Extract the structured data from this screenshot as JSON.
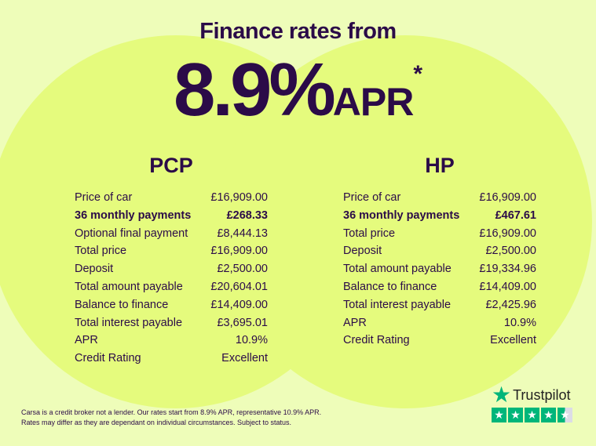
{
  "header": {
    "title": "Finance rates from",
    "rate": "8.9%",
    "rate_unit": "APR",
    "asterisk": "*"
  },
  "plans": [
    {
      "name": "PCP",
      "rows": [
        {
          "label": "Price of car",
          "value": "£16,909.00",
          "bold": false
        },
        {
          "label": "36 monthly payments",
          "value": "£268.33",
          "bold": true
        },
        {
          "label": "Optional final payment",
          "value": "£8,444.13",
          "bold": false
        },
        {
          "label": "Total price",
          "value": "£16,909.00",
          "bold": false
        },
        {
          "label": "Deposit",
          "value": "£2,500.00",
          "bold": false
        },
        {
          "label": "Total amount payable",
          "value": "£20,604.01",
          "bold": false
        },
        {
          "label": "Balance to finance",
          "value": "£14,409.00",
          "bold": false
        },
        {
          "label": "Total interest payable",
          "value": "£3,695.01",
          "bold": false
        },
        {
          "label": "APR",
          "value": "10.9%",
          "bold": false
        },
        {
          "label": "Credit Rating",
          "value": "Excellent",
          "bold": false
        }
      ]
    },
    {
      "name": "HP",
      "rows": [
        {
          "label": "Price of car",
          "value": "£16,909.00",
          "bold": false
        },
        {
          "label": "36 monthly payments",
          "value": "£467.61",
          "bold": true
        },
        {
          "label": "Total price",
          "value": "£16,909.00",
          "bold": false
        },
        {
          "label": "Deposit",
          "value": "£2,500.00",
          "bold": false
        },
        {
          "label": "Total amount payable",
          "value": "£19,334.96",
          "bold": false
        },
        {
          "label": "Balance to finance",
          "value": "£14,409.00",
          "bold": false
        },
        {
          "label": "Total interest payable",
          "value": "£2,425.96",
          "bold": false
        },
        {
          "label": "APR",
          "value": "10.9%",
          "bold": false
        },
        {
          "label": "Credit Rating",
          "value": "Excellent",
          "bold": false
        }
      ]
    }
  ],
  "disclaimer": {
    "line1": "Carsa is a credit broker not a lender. Our rates start from 8.9% APR, representative 10.9% APR.",
    "line2": "Rates may differ as they are dependant on individual circumstances. Subject to status."
  },
  "trustpilot": {
    "label": "Trustpilot",
    "icon": "star-icon",
    "rating_stars": 4.5,
    "max_stars": 5,
    "color": "#00b67a"
  },
  "colors": {
    "background": "#eefdb9",
    "circle": "#e5fb7d",
    "text": "#2b0b48"
  }
}
